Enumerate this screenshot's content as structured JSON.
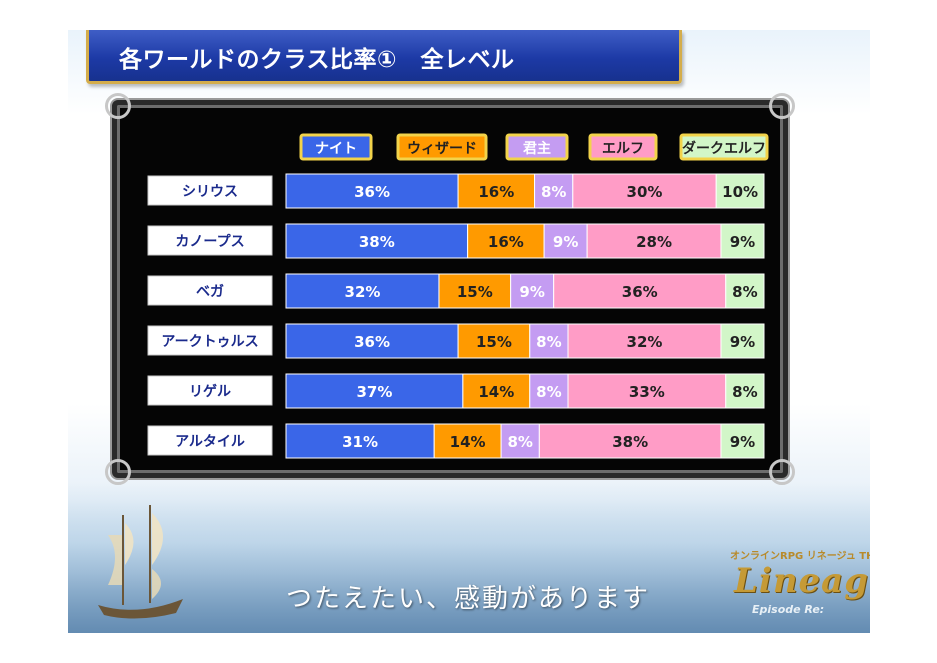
{
  "header": {
    "title": "各ワールドのクラス比率①　全レベル"
  },
  "chart_data": {
    "type": "bar",
    "stacked": true,
    "orientation": "horizontal",
    "title": "各ワールドのクラス比率①　全レベル",
    "categories": [
      "シリウス",
      "カノープス",
      "ベガ",
      "アークトゥルス",
      "リゲル",
      "アルタイル"
    ],
    "series": [
      {
        "name": "ナイト",
        "color": "#3a66e8",
        "text_color": "#ffffff",
        "values": [
          36,
          38,
          32,
          36,
          37,
          31
        ],
        "labels": [
          "36%",
          "38%",
          "32%",
          "36%",
          "37%",
          "31%"
        ]
      },
      {
        "name": "ウィザード",
        "color": "#ff9a00",
        "text_color": "#222222",
        "values": [
          16,
          16,
          15,
          15,
          14,
          14
        ],
        "labels": [
          "16%",
          "16%",
          "15%",
          "15%",
          "14%",
          "14%"
        ]
      },
      {
        "name": "君主",
        "color": "#c49cf2",
        "text_color": "#ffffff",
        "values": [
          8,
          9,
          9,
          8,
          8,
          8
        ],
        "labels": [
          "8%",
          "9%",
          "9%",
          "8%",
          "8%",
          "8%"
        ]
      },
      {
        "name": "エルフ",
        "color": "#ff9cc6",
        "text_color": "#222222",
        "values": [
          30,
          28,
          36,
          32,
          33,
          38
        ],
        "labels": [
          "30%",
          "28%",
          "36%",
          "32%",
          "33%",
          "38%"
        ]
      },
      {
        "name": "ダークエルフ",
        "color": "#d2f6c8",
        "text_color": "#222222",
        "values": [
          10,
          9,
          8,
          9,
          8,
          9
        ],
        "labels": [
          "10%",
          "9%",
          "8%",
          "9%",
          "8%",
          "9%"
        ]
      }
    ],
    "legend": "top"
  },
  "footer": {
    "slogan": "つたえたい、感動があります",
    "logo_small": "オンラインRPG リネージュ THE CROSS RANCOR",
    "logo_main": "Lineage",
    "logo_sub": "Episode Re:"
  },
  "colors": {
    "title_bg": "#1d3aa6",
    "title_border": "#d4ad4b",
    "chart_bg": "#050505"
  }
}
